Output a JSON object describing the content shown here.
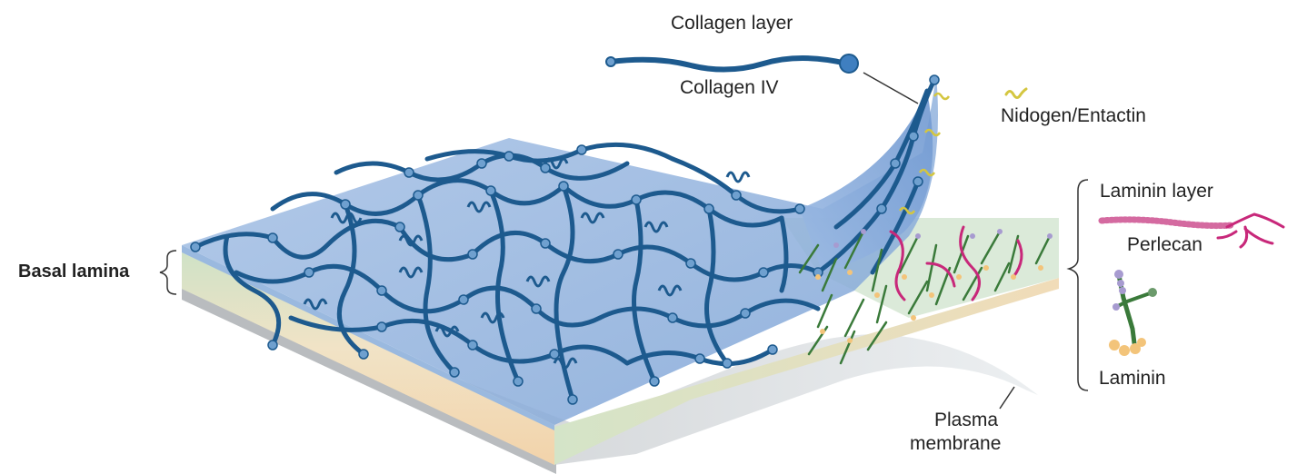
{
  "labels": {
    "collagen_layer": "Collagen layer",
    "collagen_iv": "Collagen IV",
    "nidogen": "Nidogen/Entactin",
    "laminin_layer": "Laminin layer",
    "perlecan": "Perlecan",
    "laminin": "Laminin",
    "basal_lamina": "Basal lamina",
    "plasma_line1": "Plasma",
    "plasma_line2": "membrane"
  },
  "colors": {
    "collagen": "#1d5a8e",
    "collagen_bead": "#6fa0cf",
    "collagen_sheet": "#8fb0db",
    "laminin_stem": "#3a7a3a",
    "laminin_head": "#a79bd0",
    "laminin_foot": "#f3c47a",
    "perlecan": "#c8287a",
    "nidogen": "#d4c640",
    "membrane": "#d9dcde",
    "slab_top_green": "#c6dfc3",
    "slab_peach": "#f3d9b6"
  }
}
